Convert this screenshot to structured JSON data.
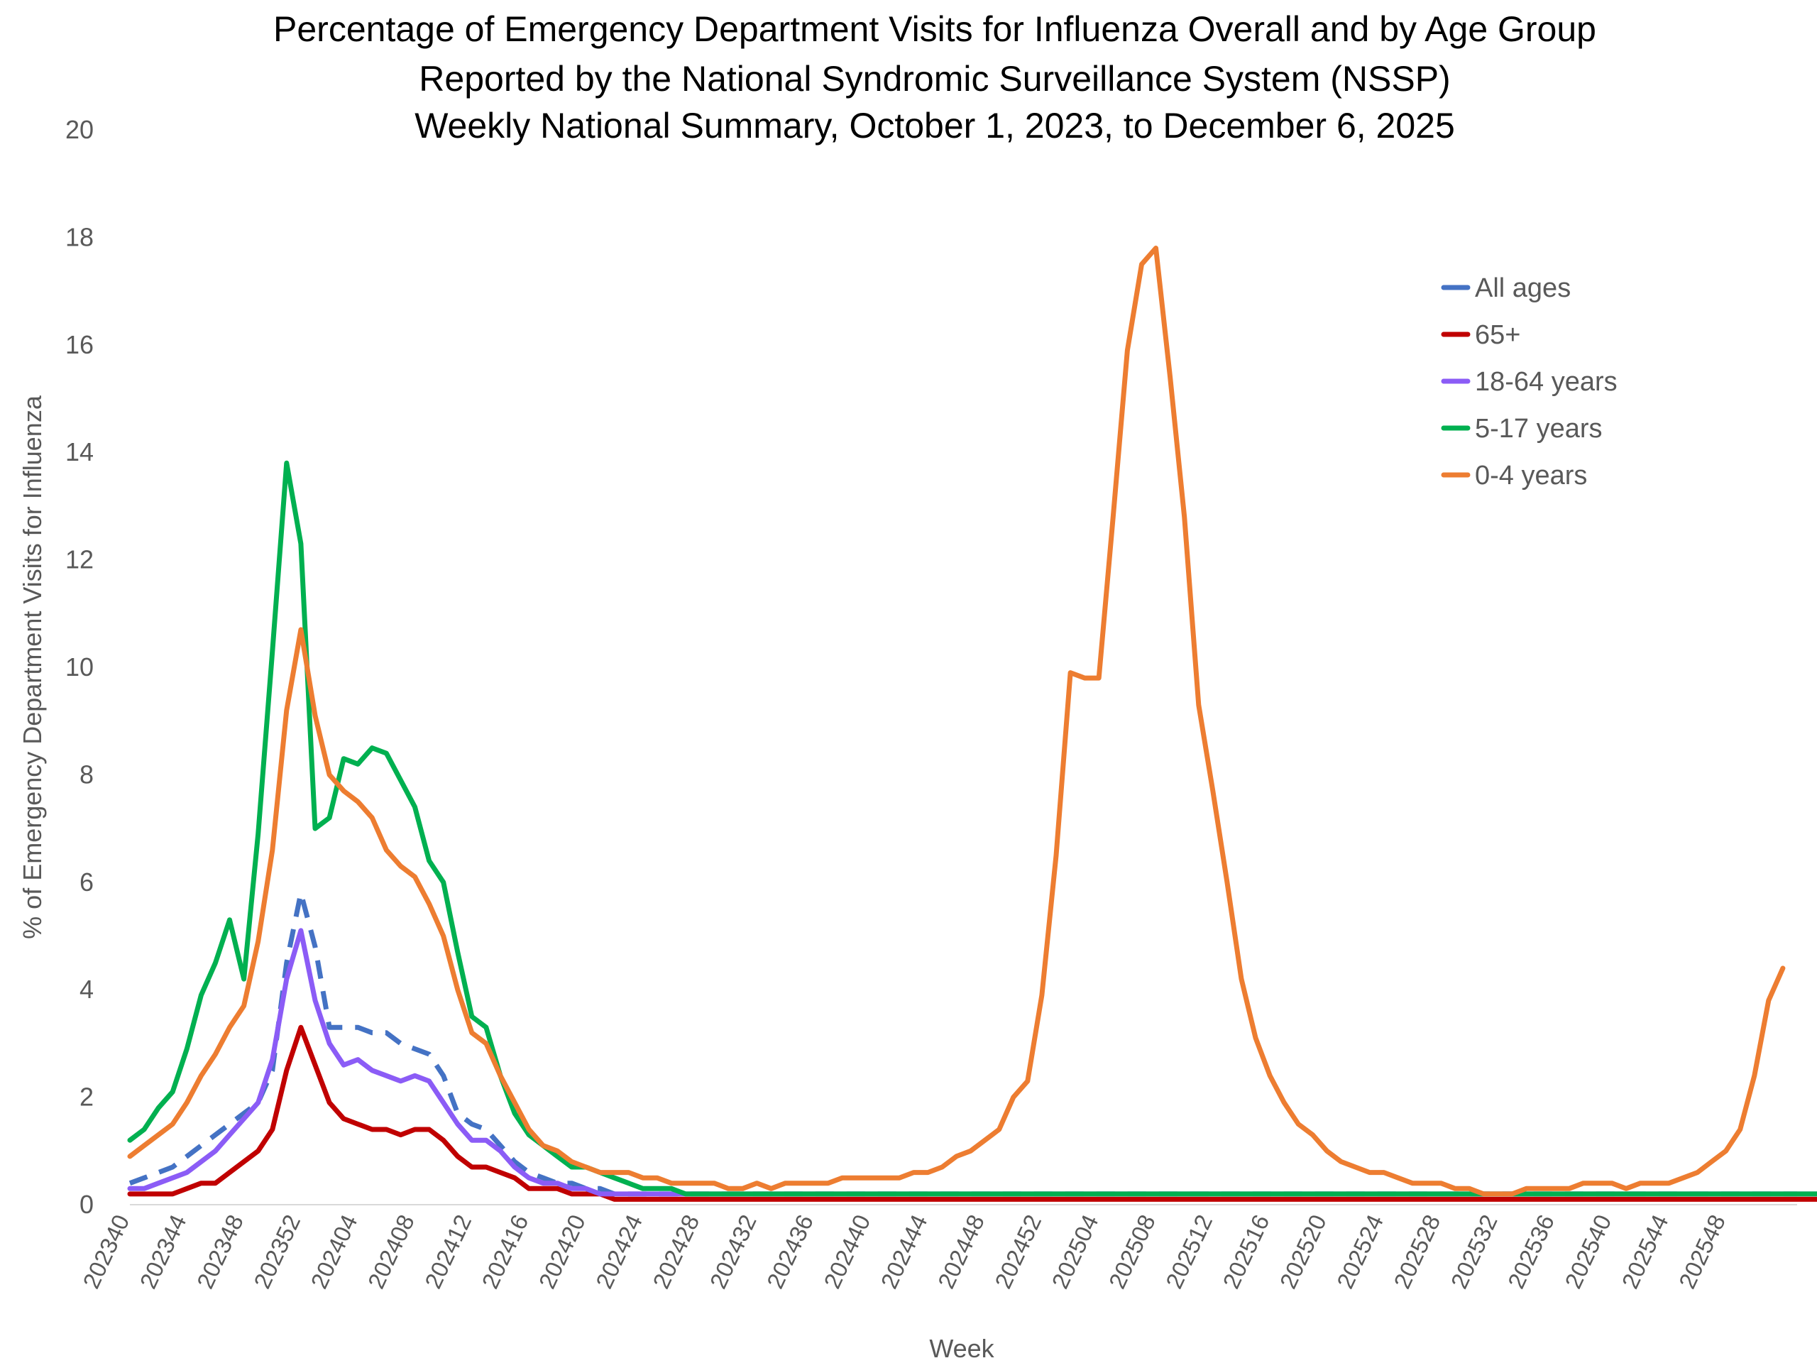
{
  "chart_data": {
    "type": "line",
    "title": [
      "Percentage of Emergency Department Visits for Influenza Overall and by Age Group",
      "Reported by the National Syndromic Surveillance System (NSSP)",
      "Weekly National Summary, October 1, 2023, to  December 6, 2025"
    ],
    "xlabel": "Week",
    "ylabel": "% of Emergency Department Visits for Influenza",
    "ylim": [
      0,
      20
    ],
    "yticks": [
      "0",
      "2",
      "4",
      "6",
      "8",
      "10",
      "12",
      "14",
      "16",
      "18",
      "20"
    ],
    "xtick_labels": [
      "202340",
      "202344",
      "202348",
      "202352",
      "202404",
      "202408",
      "202412",
      "202416",
      "202420",
      "202424",
      "202428",
      "202432",
      "202436",
      "202440",
      "202444",
      "202448",
      "202452",
      "202504",
      "202508",
      "202512",
      "202516",
      "202520",
      "202524",
      "202528",
      "202532",
      "202536",
      "202540",
      "202544",
      "202548"
    ],
    "grid": false,
    "legend": "top-right",
    "series": [
      {
        "name": "All ages",
        "color": "#4472C4",
        "dash": true,
        "values": [
          0.4,
          0.5,
          0.6,
          0.7,
          0.9,
          1.1,
          1.3,
          1.5,
          1.7,
          1.9,
          2.5,
          4.5,
          5.8,
          4.8,
          3.3,
          3.3,
          3.3,
          3.2,
          3.2,
          3.0,
          2.9,
          2.8,
          2.4,
          1.7,
          1.5,
          1.4,
          1.1,
          0.8,
          0.6,
          0.5,
          0.4,
          0.4,
          0.3,
          0.3,
          0.2,
          0.2,
          0.2,
          0.2,
          0.2,
          0.2,
          0.2,
          0.2,
          0.2,
          0.2,
          0.2,
          0.2,
          0.2,
          0.2,
          0.2,
          0.2,
          0.2,
          0.2,
          0.2,
          0.2,
          0.2,
          0.2,
          0.2,
          0.2,
          0.2,
          0.2,
          0.2,
          0.2,
          0.2,
          0.2,
          0.2,
          0.2,
          0.2,
          0.2,
          0.2,
          0.2,
          0.2,
          0.2,
          0.2,
          0.2,
          0.2,
          0.2,
          0.2,
          0.2,
          0.2,
          0.2,
          0.2,
          0.2,
          0.2,
          0.2,
          0.2,
          0.2,
          0.2,
          0.2,
          0.2,
          0.2,
          0.2,
          0.2,
          0.2,
          0.2,
          0.2,
          0.2,
          0.2,
          0.2,
          0.2,
          0.2,
          0.2,
          0.2,
          0.2,
          0.2,
          0.2,
          0.2,
          0.2,
          0.2,
          0.2,
          0.2,
          0.2,
          0.2,
          0.2,
          0.2,
          0.2,
          0.2,
          0.2,
          0.2
        ]
      },
      {
        "name": "65+",
        "color": "#C00000",
        "dash": false,
        "values": [
          0.2,
          0.2,
          0.2,
          0.2,
          0.3,
          0.4,
          0.4,
          0.6,
          0.8,
          1.0,
          1.4,
          2.5,
          3.3,
          2.6,
          1.9,
          1.6,
          1.5,
          1.4,
          1.4,
          1.3,
          1.4,
          1.4,
          1.2,
          0.9,
          0.7,
          0.7,
          0.6,
          0.5,
          0.3,
          0.3,
          0.3,
          0.2,
          0.2,
          0.2,
          0.1,
          0.1,
          0.1,
          0.1,
          0.1,
          0.1,
          0.1,
          0.1,
          0.1,
          0.1,
          0.1,
          0.1,
          0.1,
          0.1,
          0.1,
          0.1,
          0.1,
          0.1,
          0.1,
          0.1,
          0.1,
          0.1,
          0.1,
          0.1,
          0.1,
          0.1,
          0.1,
          0.1,
          0.1,
          0.1,
          0.1,
          0.1,
          0.1,
          0.1,
          0.1,
          0.1,
          0.1,
          0.1,
          0.1,
          0.1,
          0.1,
          0.1,
          0.1,
          0.1,
          0.1,
          0.1,
          0.1,
          0.1,
          0.1,
          0.1,
          0.1,
          0.1,
          0.1,
          0.1,
          0.1,
          0.1,
          0.1,
          0.1,
          0.1,
          0.1,
          0.1,
          0.1,
          0.1,
          0.1,
          0.1,
          0.1,
          0.1,
          0.1,
          0.1,
          0.1,
          0.1,
          0.1,
          0.1,
          0.1,
          0.1,
          0.1,
          0.1,
          0.1,
          0.1,
          0.1,
          0.1,
          0.1,
          0.1,
          0.1,
          0.1,
          0.1
        ]
      },
      {
        "name": "18-64 years",
        "color": "#8B5CF6",
        "dash": false,
        "values": [
          0.3,
          0.3,
          0.4,
          0.5,
          0.6,
          0.8,
          1.0,
          1.3,
          1.6,
          1.9,
          2.7,
          4.2,
          5.1,
          3.8,
          3.0,
          2.6,
          2.7,
          2.5,
          2.4,
          2.3,
          2.4,
          2.3,
          1.9,
          1.5,
          1.2,
          1.2,
          1.0,
          0.7,
          0.5,
          0.4,
          0.4,
          0.3,
          0.3,
          0.2,
          0.2,
          0.2,
          0.2,
          0.2,
          0.2,
          0.2,
          0.2,
          0.2,
          0.2,
          0.2,
          0.2,
          0.2,
          0.2,
          0.2,
          0.2,
          0.2,
          0.2,
          0.2,
          0.2,
          0.2,
          0.2,
          0.2,
          0.2,
          0.2,
          0.2,
          0.2,
          0.2,
          0.2,
          0.2,
          0.2,
          0.2,
          0.2,
          0.2,
          0.2,
          0.2,
          0.2,
          0.2,
          0.2,
          0.2,
          0.2,
          0.2,
          0.2,
          0.2,
          0.2,
          0.2,
          0.2,
          0.2,
          0.2,
          0.2,
          0.2,
          0.2,
          0.2,
          0.2,
          0.2,
          0.2,
          0.2,
          0.2,
          0.2,
          0.2,
          0.2,
          0.2,
          0.2,
          0.2,
          0.2,
          0.2,
          0.2,
          0.2,
          0.2,
          0.2,
          0.2,
          0.2,
          0.2,
          0.2,
          0.2,
          0.2,
          0.2,
          0.2,
          0.2,
          0.2,
          0.2,
          0.2,
          0.2,
          0.2,
          0.2,
          0.2,
          0.2
        ]
      },
      {
        "name": "5-17 years",
        "color": "#00B050",
        "dash": false,
        "values": [
          1.2,
          1.4,
          1.8,
          2.1,
          2.9,
          3.9,
          4.5,
          5.3,
          4.2,
          6.9,
          10.3,
          13.8,
          12.3,
          7.0,
          7.2,
          8.3,
          8.2,
          8.5,
          8.4,
          7.9,
          7.4,
          6.4,
          6.0,
          4.7,
          3.5,
          3.3,
          2.4,
          1.7,
          1.3,
          1.1,
          0.9,
          0.7,
          0.7,
          0.6,
          0.5,
          0.4,
          0.3,
          0.3,
          0.3,
          0.2,
          0.2,
          0.2,
          0.2,
          0.2,
          0.2,
          0.2,
          0.2,
          0.2,
          0.2,
          0.2,
          0.2,
          0.2,
          0.2,
          0.2,
          0.2,
          0.2,
          0.2,
          0.2,
          0.2,
          0.2,
          0.2,
          0.2,
          0.2,
          0.2,
          0.2,
          0.2,
          0.2,
          0.2,
          0.2,
          0.2,
          0.2,
          0.2,
          0.2,
          0.2,
          0.2,
          0.2,
          0.2,
          0.2,
          0.2,
          0.2,
          0.2,
          0.2,
          0.2,
          0.2,
          0.2,
          0.2,
          0.2,
          0.2,
          0.2,
          0.2,
          0.2,
          0.2,
          0.2,
          0.2,
          0.2,
          0.2,
          0.2,
          0.2,
          0.2,
          0.2,
          0.2,
          0.2,
          0.2,
          0.2,
          0.2,
          0.2,
          0.2,
          0.2,
          0.2,
          0.2,
          0.2,
          0.2,
          0.2,
          0.2,
          0.2,
          0.2,
          0.2,
          0.2,
          0.2,
          0.2
        ]
      },
      {
        "name": "0-4 years",
        "color": "#ED7D31",
        "dash": false,
        "values": [
          0.9,
          1.1,
          1.3,
          1.5,
          1.9,
          2.4,
          2.8,
          3.3,
          3.7,
          4.9,
          6.6,
          9.2,
          10.7,
          9.1,
          8.0,
          7.7,
          7.5,
          7.2,
          6.6,
          6.3,
          6.1,
          5.6,
          5.0,
          4.0,
          3.2,
          3.0,
          2.4,
          1.9,
          1.4,
          1.1,
          1.0,
          0.8,
          0.7,
          0.6,
          0.6,
          0.6,
          0.5,
          0.5,
          0.4,
          0.4,
          0.4,
          0.4,
          0.3,
          0.3,
          0.4,
          0.3,
          0.4,
          0.4,
          0.4,
          0.4,
          0.5,
          0.5,
          0.5,
          0.5,
          0.5,
          0.6,
          0.6,
          0.7,
          0.9,
          1.0,
          1.2,
          1.4,
          2.0,
          2.3,
          3.9,
          6.5,
          9.9,
          9.8,
          9.8,
          12.8,
          15.9,
          17.5,
          17.8,
          15.4,
          12.8,
          9.3,
          7.7,
          6.0,
          4.2,
          3.1,
          2.4,
          1.9,
          1.5,
          1.3,
          1.0,
          0.8,
          0.7,
          0.6,
          0.6,
          0.5,
          0.4,
          0.4,
          0.4,
          0.3,
          0.3,
          0.2,
          0.2,
          0.2,
          0.3,
          0.3,
          0.3,
          0.3,
          0.4,
          0.4,
          0.4,
          0.3,
          0.4,
          0.4,
          0.4,
          0.5,
          0.6,
          0.8,
          1.0,
          1.4,
          2.4,
          3.8,
          4.4
        ]
      }
    ]
  }
}
